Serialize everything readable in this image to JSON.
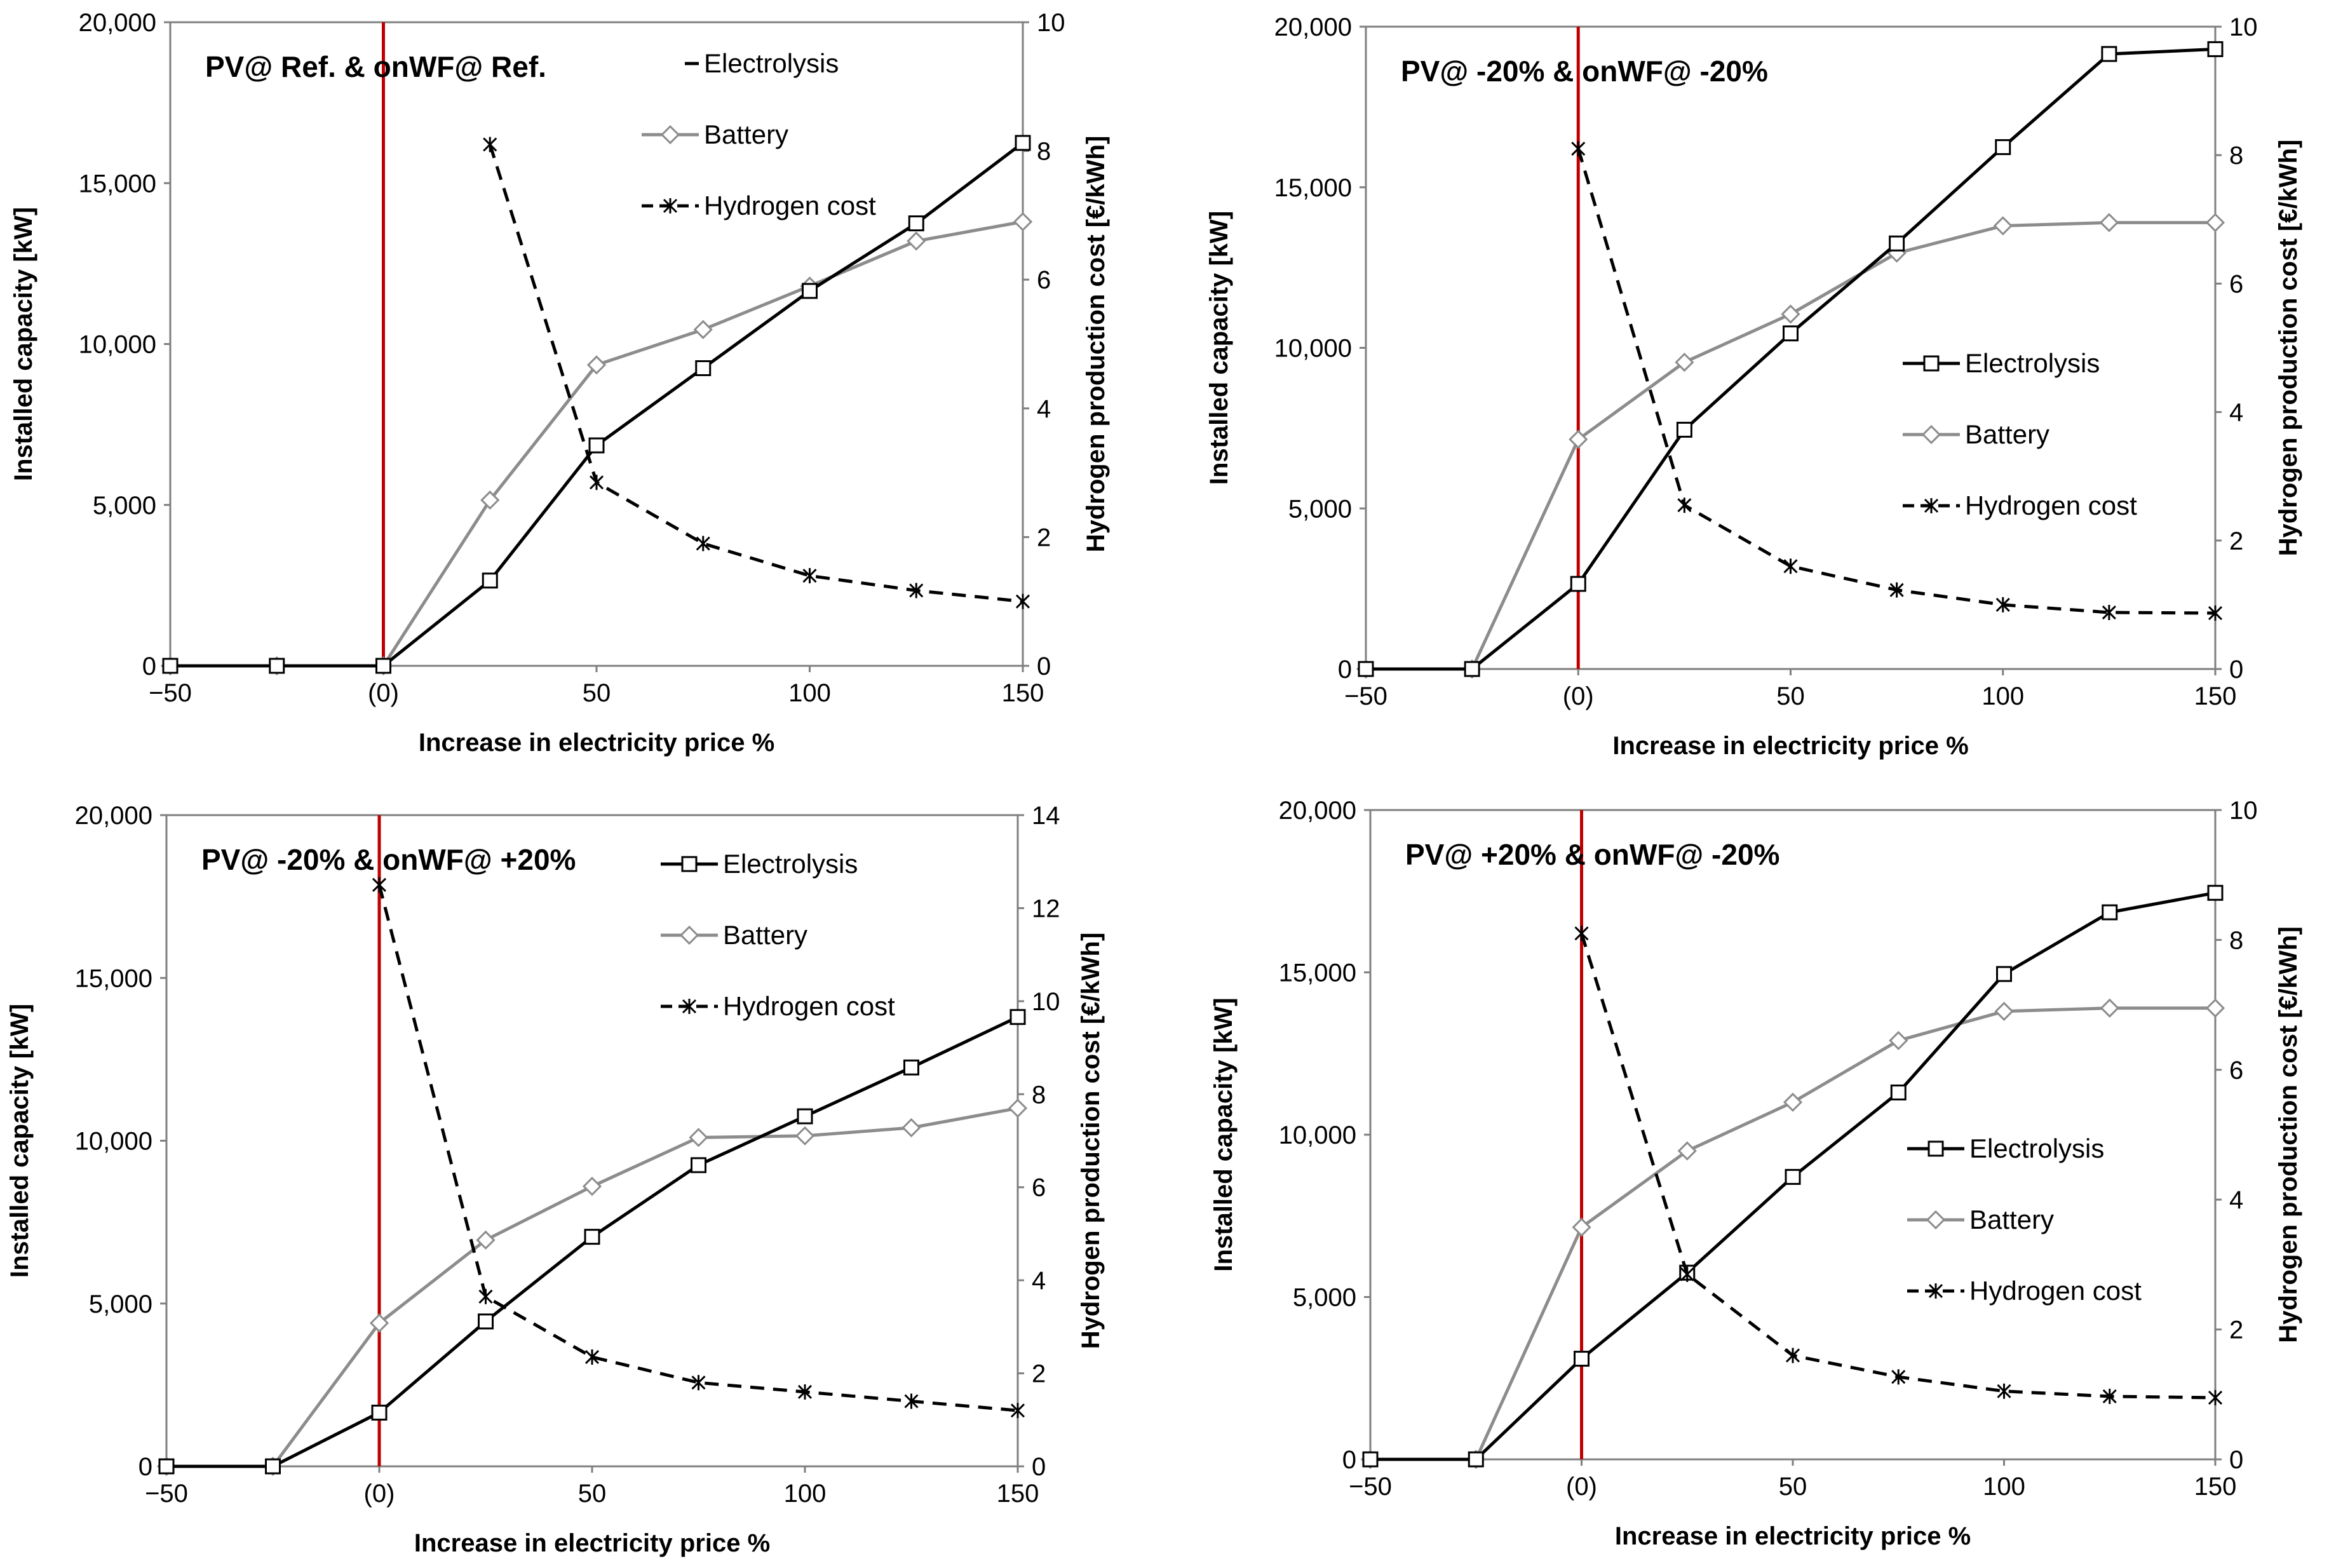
{
  "figure": {
    "name": "hydrogen-electricity-price-sensitivity",
    "styles": {
      "axis_color": "#7f7f7f",
      "red_line_color": "#c00000",
      "electrolysis_color": "#000000",
      "battery_color": "#8c8c8c",
      "hydrogen_color": "#000000"
    }
  },
  "chart_data": [
    {
      "type": "line",
      "title": "PV@ Ref. & onWF@ Ref.",
      "xlabel": "Increase in electricity price %",
      "ylabel": "Installed capacity [kW]",
      "y2label": "Hydrogen production cost [€/kWh]",
      "x": [
        -50,
        -25,
        0,
        25,
        50,
        75,
        100,
        125,
        150
      ],
      "xlim": [
        -50,
        150
      ],
      "xticks": [
        -50,
        0,
        50,
        100,
        150
      ],
      "xtick_labels": [
        "−50",
        "(0)",
        "50",
        "100",
        "150"
      ],
      "ylim": [
        0,
        20000
      ],
      "yticks": [
        0,
        5000,
        10000,
        15000,
        20000
      ],
      "ytick_labels": [
        "0",
        "5,000",
        "10,000",
        "15,000",
        "20,000"
      ],
      "y2lim": [
        0,
        10
      ],
      "y2ticks": [
        0,
        2,
        4,
        6,
        8,
        10
      ],
      "y2tick_labels": [
        "0",
        "2",
        "4",
        "6",
        "8",
        "10"
      ],
      "reference_x": 0,
      "legend": {
        "position": "top-center",
        "electrolysis_marker": false
      },
      "series": [
        {
          "name": "Electrolysis",
          "axis": "left",
          "style": "electrolysis",
          "values": [
            0,
            0,
            0,
            2650,
            6850,
            9250,
            11650,
            13750,
            16250
          ]
        },
        {
          "name": "Battery",
          "axis": "left",
          "style": "battery",
          "values": [
            0,
            0,
            0,
            5150,
            9350,
            10450,
            11800,
            13200,
            13800
          ]
        },
        {
          "name": "Hydrogen cost",
          "axis": "right",
          "style": "hydrogen",
          "values": [
            null,
            null,
            null,
            8.1,
            2.85,
            1.9,
            1.4,
            1.17,
            1.0
          ]
        }
      ]
    },
    {
      "type": "line",
      "title": "PV@ -20% & onWF@ -20%",
      "xlabel": "Increase in electricity price %",
      "ylabel": "Installed capacity [kW]",
      "y2label": "Hydrogen production cost [€/kWh]",
      "x": [
        -50,
        -25,
        0,
        25,
        50,
        75,
        100,
        125,
        150
      ],
      "xlim": [
        -50,
        150
      ],
      "xticks": [
        -50,
        0,
        50,
        100,
        150
      ],
      "xtick_labels": [
        "−50",
        "(0)",
        "50",
        "100",
        "150"
      ],
      "ylim": [
        0,
        20000
      ],
      "yticks": [
        0,
        5000,
        10000,
        15000,
        20000
      ],
      "ytick_labels": [
        "0",
        "5,000",
        "10,000",
        "15,000",
        "20,000"
      ],
      "y2lim": [
        0,
        10
      ],
      "y2ticks": [
        0,
        2,
        4,
        6,
        8,
        10
      ],
      "y2tick_labels": [
        "0",
        "2",
        "4",
        "6",
        "8",
        "10"
      ],
      "reference_x": 0,
      "legend": {
        "position": "center-right",
        "electrolysis_marker": true
      },
      "series": [
        {
          "name": "Electrolysis",
          "axis": "left",
          "style": "electrolysis",
          "values": [
            0,
            0,
            2650,
            7450,
            10450,
            13250,
            16250,
            19150,
            19300
          ]
        },
        {
          "name": "Battery",
          "axis": "left",
          "style": "battery",
          "values": [
            0,
            0,
            7150,
            9550,
            11050,
            12950,
            13800,
            13900,
            13900
          ]
        },
        {
          "name": "Hydrogen cost",
          "axis": "right",
          "style": "hydrogen",
          "values": [
            null,
            null,
            8.1,
            2.55,
            1.6,
            1.23,
            1.0,
            0.88,
            0.87
          ]
        }
      ]
    },
    {
      "type": "line",
      "title": "PV@ -20% & onWF@ +20%",
      "xlabel": "Increase in electricity price %",
      "ylabel": "Installed capacity [kW]",
      "y2label": "Hydrogen production cost [€/kWh]",
      "x": [
        -50,
        -25,
        0,
        25,
        50,
        75,
        100,
        125,
        150
      ],
      "xlim": [
        -50,
        150
      ],
      "xticks": [
        -50,
        0,
        50,
        100,
        150
      ],
      "xtick_labels": [
        "−50",
        "(0)",
        "50",
        "100",
        "150"
      ],
      "ylim": [
        0,
        20000
      ],
      "yticks": [
        0,
        5000,
        10000,
        15000,
        20000
      ],
      "ytick_labels": [
        "0",
        "5,000",
        "10,000",
        "15,000",
        "20,000"
      ],
      "y2lim": [
        0,
        14
      ],
      "y2ticks": [
        0,
        2,
        4,
        6,
        8,
        10,
        12,
        14
      ],
      "y2tick_labels": [
        "0",
        "2",
        "4",
        "6",
        "8",
        "10",
        "12",
        "14"
      ],
      "reference_x": 0,
      "legend": {
        "position": "top-center",
        "electrolysis_marker": true
      },
      "series": [
        {
          "name": "Electrolysis",
          "axis": "left",
          "style": "electrolysis",
          "values": [
            0,
            0,
            1650,
            4450,
            7050,
            9250,
            10750,
            12250,
            13800
          ]
        },
        {
          "name": "Battery",
          "axis": "left",
          "style": "battery",
          "values": [
            0,
            0,
            4400,
            6950,
            8600,
            10100,
            10150,
            10400,
            11000
          ]
        },
        {
          "name": "Hydrogen cost",
          "axis": "right",
          "style": "hydrogen",
          "values": [
            null,
            null,
            12.5,
            3.65,
            2.35,
            1.8,
            1.6,
            1.4,
            1.2
          ]
        }
      ]
    },
    {
      "type": "line",
      "title": "PV@ +20% & onWF@ -20%",
      "xlabel": "Increase in electricity price %",
      "ylabel": "Installed capacity [kW]",
      "y2label": "Hydrogen production cost [€/kWh]",
      "x": [
        -50,
        -25,
        0,
        25,
        50,
        75,
        100,
        125,
        150
      ],
      "xlim": [
        -50,
        150
      ],
      "xticks": [
        -50,
        0,
        50,
        100,
        150
      ],
      "xtick_labels": [
        "−50",
        "(0)",
        "50",
        "100",
        "150"
      ],
      "ylim": [
        0,
        20000
      ],
      "yticks": [
        0,
        5000,
        10000,
        15000,
        20000
      ],
      "ytick_labels": [
        "0",
        "5,000",
        "10,000",
        "15,000",
        "20,000"
      ],
      "y2lim": [
        0,
        10
      ],
      "y2ticks": [
        0,
        2,
        4,
        6,
        8,
        10
      ],
      "y2tick_labels": [
        "0",
        "2",
        "4",
        "6",
        "8",
        "10"
      ],
      "reference_x": 0,
      "legend": {
        "position": "center-right",
        "electrolysis_marker": true
      },
      "series": [
        {
          "name": "Electrolysis",
          "axis": "left",
          "style": "electrolysis",
          "values": [
            0,
            0,
            3100,
            5750,
            8700,
            11300,
            14950,
            16850,
            17450
          ]
        },
        {
          "name": "Battery",
          "axis": "left",
          "style": "battery",
          "values": [
            0,
            0,
            7150,
            9500,
            11000,
            12900,
            13800,
            13900,
            13900
          ]
        },
        {
          "name": "Hydrogen cost",
          "axis": "right",
          "style": "hydrogen",
          "values": [
            null,
            null,
            8.1,
            2.85,
            1.6,
            1.27,
            1.05,
            0.97,
            0.95
          ]
        }
      ]
    }
  ]
}
